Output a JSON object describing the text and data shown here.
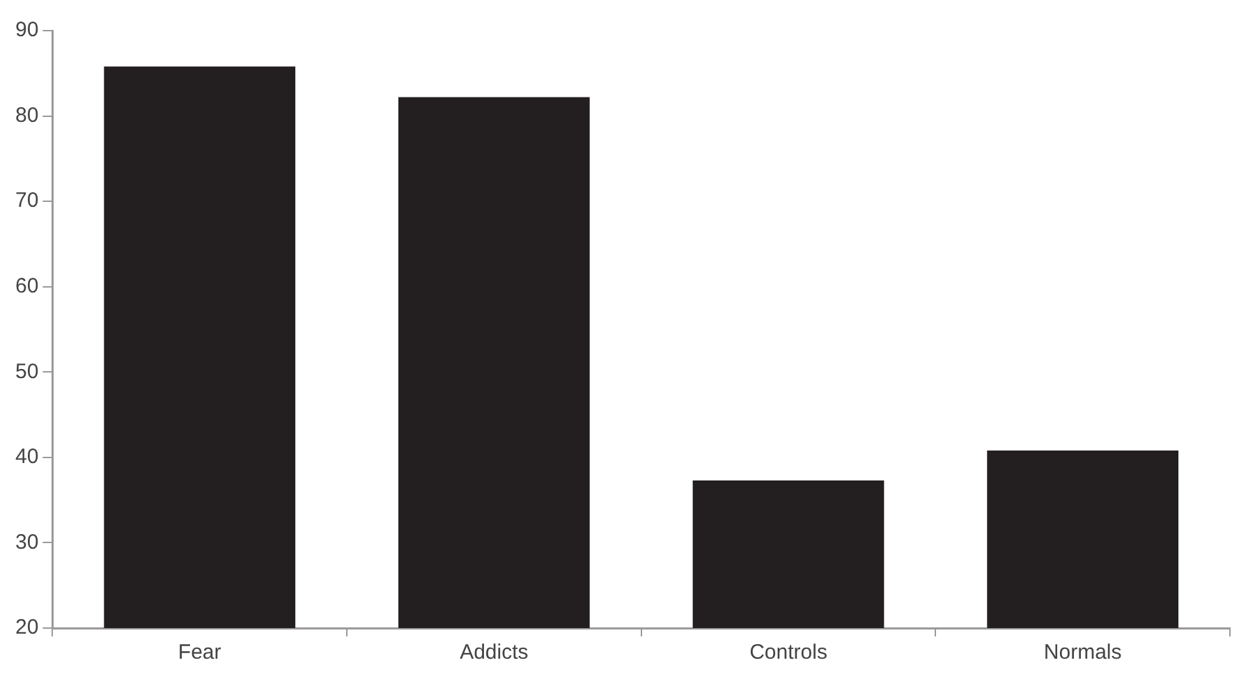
{
  "chart_data": {
    "type": "bar",
    "categories": [
      "Fear",
      "Addicts",
      "Controls",
      "Normals"
    ],
    "values": [
      85.8,
      82.2,
      37.3,
      40.8
    ],
    "color": "#231f20",
    "ylim": [
      20,
      90
    ],
    "yticks": [
      20,
      30,
      40,
      50,
      60,
      70,
      80,
      90
    ],
    "grid": false,
    "legend": false
  }
}
